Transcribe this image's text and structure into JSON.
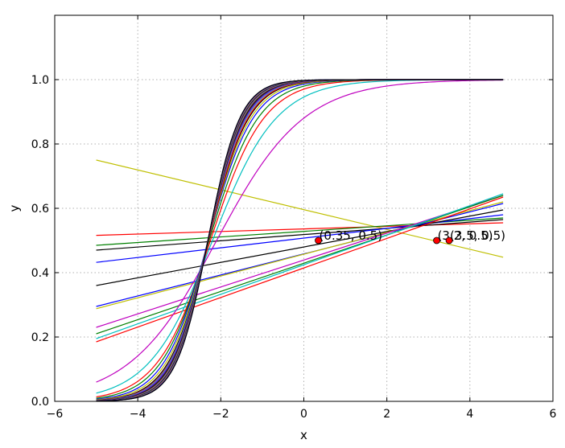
{
  "chart_data": {
    "type": "line",
    "xlabel": "x",
    "ylabel": "y",
    "xlim": [
      -6,
      6
    ],
    "ylim": [
      0,
      1.2
    ],
    "x_ticks": [
      -6,
      -4,
      -2,
      0,
      2,
      4,
      6
    ],
    "y_ticks": [
      0.0,
      0.2,
      0.4,
      0.6,
      0.8,
      1.0
    ],
    "x_tick_labels": [
      "−6",
      "−4",
      "−2",
      "0",
      "2",
      "4",
      "6"
    ],
    "y_tick_labels": [
      "0.0",
      "0.2",
      "0.4",
      "0.6",
      "0.8",
      "1.0"
    ],
    "grid": true,
    "x_range": [
      -5.0,
      4.8
    ],
    "series": [
      {
        "values": [
          [
            -5.0,
            0.75
          ],
          [
            4.8,
            0.448
          ]
        ],
        "color": "#bfbf00"
      },
      {
        "values": [
          [
            -5.0,
            0.516
          ],
          [
            4.8,
            0.555
          ]
        ],
        "color": "#ff0000"
      },
      {
        "values": [
          [
            -5.0,
            0.485
          ],
          [
            4.8,
            0.57
          ]
        ],
        "color": "#008000"
      },
      {
        "values": [
          [
            -5.0,
            0.47
          ],
          [
            4.8,
            0.565
          ]
        ],
        "color": "#000000"
      },
      {
        "values": [
          [
            -5.0,
            0.432
          ],
          [
            4.8,
            0.58
          ]
        ],
        "color": "#0000ff"
      },
      {
        "values": [
          [
            -5.0,
            0.36
          ],
          [
            4.8,
            0.595
          ]
        ],
        "color": "#000000"
      },
      {
        "values": [
          [
            -5.0,
            0.295
          ],
          [
            4.8,
            0.615
          ]
        ],
        "color": "#0000ff"
      },
      {
        "values": [
          [
            -5.0,
            0.288
          ],
          [
            4.8,
            0.62
          ]
        ],
        "color": "#bfbf00"
      },
      {
        "values": [
          [
            -5.0,
            0.23
          ],
          [
            4.8,
            0.64
          ]
        ],
        "color": "#bf00bf"
      },
      {
        "values": [
          [
            -5.0,
            0.21
          ],
          [
            4.8,
            0.64
          ]
        ],
        "color": "#008000"
      },
      {
        "values": [
          [
            -5.0,
            0.195
          ],
          [
            4.8,
            0.645
          ]
        ],
        "color": "#00bfbf"
      },
      {
        "values": [
          [
            -5.0,
            0.185
          ],
          [
            4.8,
            0.635
          ]
        ],
        "color": "#ff0000"
      },
      {
        "sigmoid": {
          "slope": 0.95,
          "center": -2.1
        },
        "color": "#bf00bf"
      },
      {
        "sigmoid": {
          "slope": 1.3,
          "center": -2.2
        },
        "color": "#00bfbf"
      },
      {
        "sigmoid": {
          "slope": 1.55,
          "center": -2.25
        },
        "color": "#ff0000"
      },
      {
        "sigmoid": {
          "slope": 1.7,
          "center": -2.28
        },
        "color": "#008000"
      },
      {
        "sigmoid": {
          "slope": 1.85,
          "center": -2.3
        },
        "color": "#0000ff"
      },
      {
        "sigmoid": {
          "slope": 1.95,
          "center": -2.3
        },
        "color": "#bfbf00"
      },
      {
        "sigmoid": {
          "slope": 2.05,
          "center": -2.3
        },
        "color": "#000000"
      },
      {
        "sigmoid": {
          "slope": 2.1,
          "center": -2.3
        },
        "color": "#ff0000"
      },
      {
        "sigmoid": {
          "slope": 2.15,
          "center": -2.31
        },
        "color": "#00bfbf"
      },
      {
        "sigmoid": {
          "slope": 2.2,
          "center": -2.31
        },
        "color": "#bf00bf"
      },
      {
        "sigmoid": {
          "slope": 2.25,
          "center": -2.31
        },
        "color": "#0000ff"
      },
      {
        "sigmoid": {
          "slope": 2.28,
          "center": -2.31
        },
        "color": "#008000"
      },
      {
        "sigmoid": {
          "slope": 2.31,
          "center": -2.31
        },
        "color": "#000000"
      },
      {
        "sigmoid": {
          "slope": 2.34,
          "center": -2.31
        },
        "color": "#ff0000"
      },
      {
        "sigmoid": {
          "slope": 2.37,
          "center": -2.31
        },
        "color": "#00bfbf"
      },
      {
        "sigmoid": {
          "slope": 2.4,
          "center": -2.31
        },
        "color": "#bf00bf"
      },
      {
        "sigmoid": {
          "slope": 2.42,
          "center": -2.31
        },
        "color": "#bfbf00"
      },
      {
        "sigmoid": {
          "slope": 2.44,
          "center": -2.31
        },
        "color": "#0000ff"
      },
      {
        "sigmoid": {
          "slope": 2.46,
          "center": -2.31
        },
        "color": "#000000"
      },
      {
        "sigmoid": {
          "slope": 2.48,
          "center": -2.31
        },
        "color": "#008000"
      },
      {
        "sigmoid": {
          "slope": 2.5,
          "center": -2.31
        },
        "color": "#ff0000"
      },
      {
        "sigmoid": {
          "slope": 2.52,
          "center": -2.31
        },
        "color": "#00bfbf"
      },
      {
        "sigmoid": {
          "slope": 2.54,
          "center": -2.31
        },
        "color": "#bf00bf"
      },
      {
        "sigmoid": {
          "slope": 2.56,
          "center": -2.31
        },
        "color": "#bfbf00"
      },
      {
        "sigmoid": {
          "slope": 2.58,
          "center": -2.31
        },
        "color": "#0000ff"
      },
      {
        "sigmoid": {
          "slope": 2.6,
          "center": -2.31
        },
        "color": "#000000"
      }
    ],
    "points": [
      {
        "x": 0.35,
        "y": 0.5,
        "label": "(0.35, 0.5)",
        "color": "#ff0000"
      },
      {
        "x": 3.2,
        "y": 0.5,
        "label": "(3.2, 0.5)",
        "color": "#ff0000"
      },
      {
        "x": 3.5,
        "y": 0.5,
        "label": "(3.5, 0.5)",
        "color": "#ff0000"
      }
    ]
  }
}
